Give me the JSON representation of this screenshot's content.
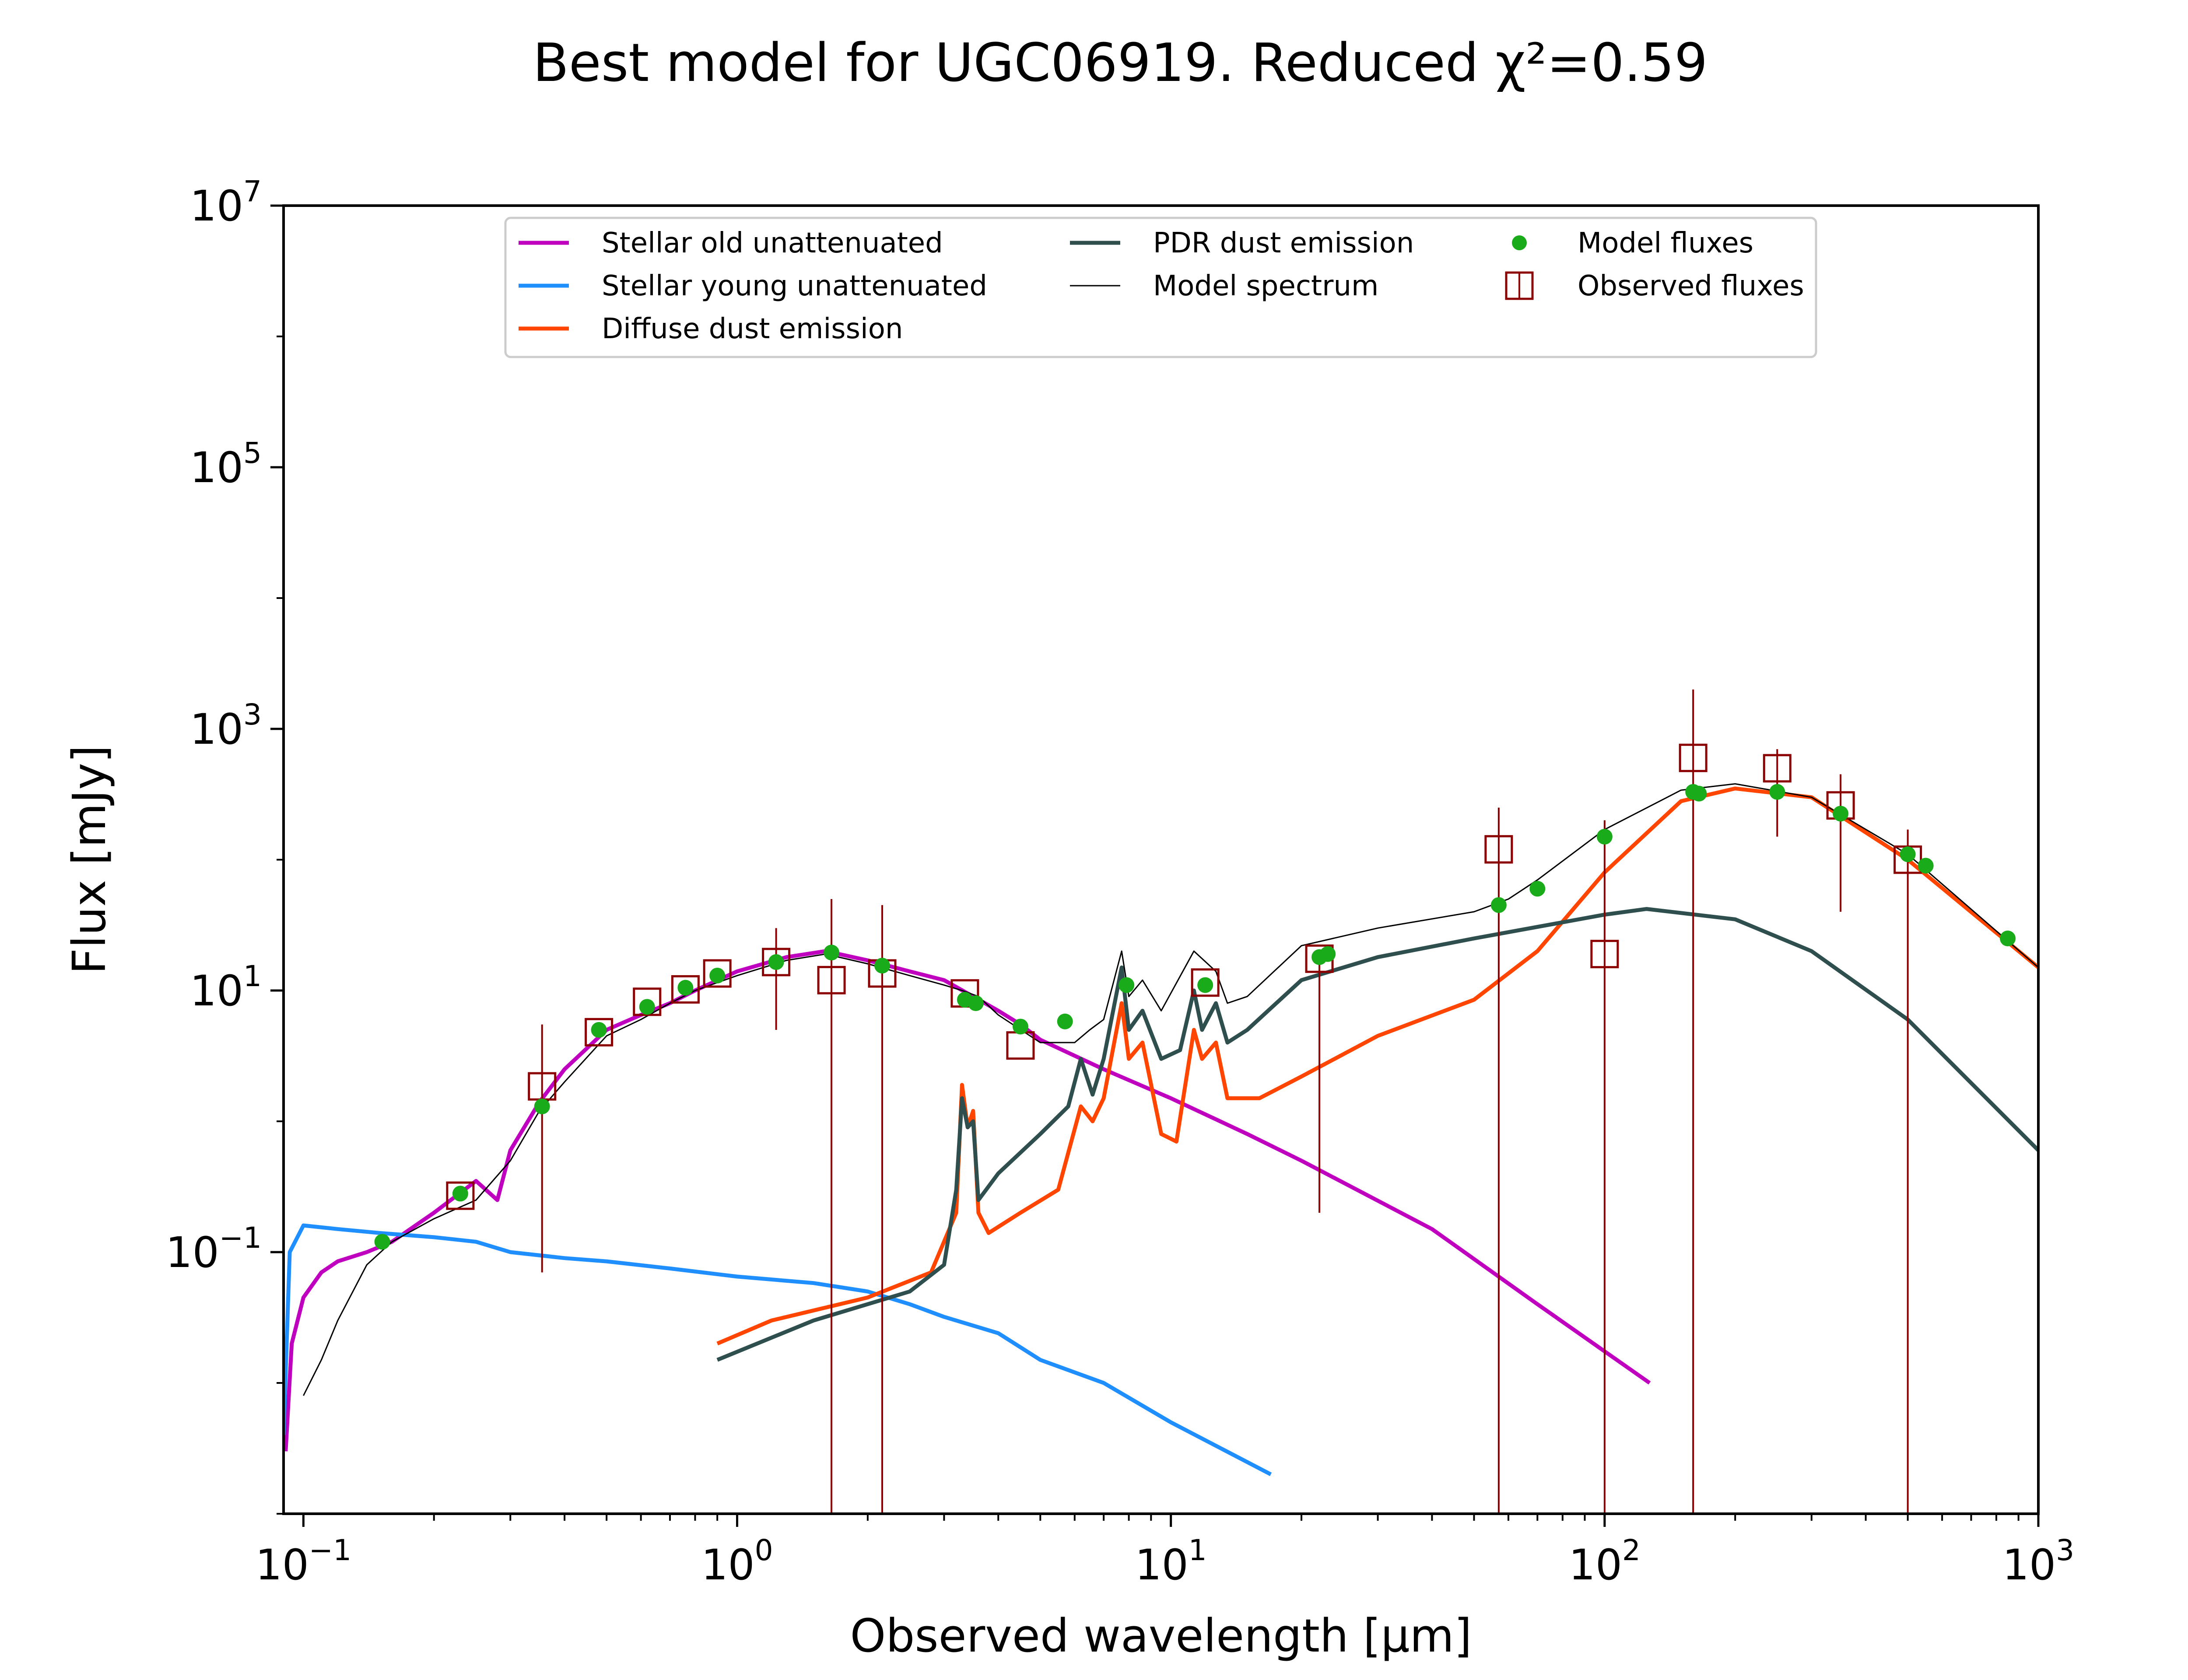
{
  "chart_data": {
    "type": "line",
    "title": "Best model for UGC06919. Reduced χ²=0.59",
    "xlabel": "Observed wavelength [μm]",
    "ylabel": "Flux [mJy]",
    "xscale": "log",
    "yscale": "log",
    "xlim": [
      0.09,
      1000
    ],
    "ylim": [
      0.001,
      10000000
    ],
    "x_ticks": [
      {
        "value": 0.1,
        "base": "10",
        "exp": "−1"
      },
      {
        "value": 1,
        "base": "10",
        "exp": "0"
      },
      {
        "value": 10,
        "base": "10",
        "exp": "1"
      },
      {
        "value": 100,
        "base": "10",
        "exp": "2"
      },
      {
        "value": 1000,
        "base": "10",
        "exp": "3"
      }
    ],
    "y_ticks": [
      {
        "value": 0.1,
        "base": "10",
        "exp": "−1"
      },
      {
        "value": 10,
        "base": "10",
        "exp": "1"
      },
      {
        "value": 1000,
        "base": "10",
        "exp": "3"
      },
      {
        "value": 100000,
        "base": "10",
        "exp": "5"
      },
      {
        "value": 10000000,
        "base": "10",
        "exp": "7"
      }
    ],
    "grid": false,
    "legend_position": "top-center",
    "series": [
      {
        "name": "Stellar old unattenuated",
        "kind": "line",
        "color": "#bf00bf",
        "points": [
          [
            0.091,
            0.003
          ],
          [
            0.094,
            0.02
          ],
          [
            0.1,
            0.045
          ],
          [
            0.11,
            0.07
          ],
          [
            0.12,
            0.085
          ],
          [
            0.14,
            0.1
          ],
          [
            0.16,
            0.12
          ],
          [
            0.2,
            0.2
          ],
          [
            0.25,
            0.35
          ],
          [
            0.28,
            0.25
          ],
          [
            0.3,
            0.6
          ],
          [
            0.35,
            1.4
          ],
          [
            0.4,
            2.5
          ],
          [
            0.5,
            5
          ],
          [
            0.6,
            6.5
          ],
          [
            0.7,
            8
          ],
          [
            0.8,
            10
          ],
          [
            1.0,
            14
          ],
          [
            1.3,
            18
          ],
          [
            1.6,
            20
          ],
          [
            2.0,
            17
          ],
          [
            2.5,
            14
          ],
          [
            3.0,
            12
          ],
          [
            3.5,
            9
          ],
          [
            4.0,
            7
          ],
          [
            4.5,
            5.5
          ],
          [
            5.0,
            4.2
          ],
          [
            7.0,
            2.5
          ],
          [
            10.0,
            1.5
          ],
          [
            15.0,
            0.8
          ],
          [
            20.0,
            0.5
          ],
          [
            40.0,
            0.15
          ],
          [
            70.0,
            0.04
          ],
          [
            127.0,
            0.01
          ]
        ]
      },
      {
        "name": "Stellar young unattenuated",
        "kind": "line",
        "color": "#1f8fff",
        "points": [
          [
            0.09,
            0.004
          ],
          [
            0.093,
            0.1
          ],
          [
            0.1,
            0.16
          ],
          [
            0.12,
            0.15
          ],
          [
            0.15,
            0.14
          ],
          [
            0.2,
            0.13
          ],
          [
            0.25,
            0.12
          ],
          [
            0.3,
            0.1
          ],
          [
            0.4,
            0.09
          ],
          [
            0.5,
            0.085
          ],
          [
            0.7,
            0.075
          ],
          [
            1.0,
            0.065
          ],
          [
            1.5,
            0.058
          ],
          [
            2.0,
            0.05
          ],
          [
            2.5,
            0.04
          ],
          [
            3.0,
            0.032
          ],
          [
            4.0,
            0.024
          ],
          [
            5.0,
            0.015
          ],
          [
            7.0,
            0.01
          ],
          [
            10.0,
            0.005
          ],
          [
            17.0,
            0.002
          ]
        ]
      },
      {
        "name": "Diffuse dust emission",
        "kind": "line",
        "color": "#ff4500",
        "points": [
          [
            0.9,
            0.02
          ],
          [
            1.2,
            0.03
          ],
          [
            2.0,
            0.045
          ],
          [
            2.8,
            0.07
          ],
          [
            3.2,
            0.2
          ],
          [
            3.3,
            1.9
          ],
          [
            3.4,
            0.9
          ],
          [
            3.5,
            1.2
          ],
          [
            3.6,
            0.2
          ],
          [
            3.8,
            0.14
          ],
          [
            4.5,
            0.2
          ],
          [
            5.5,
            0.3
          ],
          [
            6.2,
            1.3
          ],
          [
            6.6,
            1.0
          ],
          [
            7.0,
            1.5
          ],
          [
            7.7,
            8
          ],
          [
            8.0,
            3
          ],
          [
            8.6,
            4
          ],
          [
            9.5,
            0.8
          ],
          [
            10.3,
            0.7
          ],
          [
            11.3,
            5
          ],
          [
            11.8,
            3
          ],
          [
            12.7,
            4
          ],
          [
            13.5,
            1.5
          ],
          [
            16.0,
            1.5
          ],
          [
            20.0,
            2.2
          ],
          [
            30.0,
            4.5
          ],
          [
            50.0,
            8.5
          ],
          [
            70.0,
            20
          ],
          [
            100.0,
            80
          ],
          [
            150.0,
            280
          ],
          [
            200.0,
            350
          ],
          [
            300.0,
            300
          ],
          [
            500.0,
            100
          ],
          [
            1000.0,
            15
          ]
        ]
      },
      {
        "name": "PDR dust emission",
        "kind": "line",
        "color": "#2f4f4f",
        "points": [
          [
            0.9,
            0.015
          ],
          [
            1.5,
            0.03
          ],
          [
            2.5,
            0.05
          ],
          [
            3.0,
            0.08
          ],
          [
            3.2,
            0.3
          ],
          [
            3.3,
            1.5
          ],
          [
            3.4,
            0.9
          ],
          [
            3.5,
            1.0
          ],
          [
            3.6,
            0.25
          ],
          [
            4.0,
            0.4
          ],
          [
            5.0,
            0.8
          ],
          [
            5.8,
            1.3
          ],
          [
            6.2,
            3.0
          ],
          [
            6.6,
            1.6
          ],
          [
            7.0,
            3
          ],
          [
            7.7,
            15
          ],
          [
            8.0,
            5
          ],
          [
            8.6,
            7
          ],
          [
            9.5,
            3
          ],
          [
            10.5,
            3.5
          ],
          [
            11.3,
            10
          ],
          [
            11.8,
            5
          ],
          [
            12.7,
            8
          ],
          [
            13.5,
            4
          ],
          [
            15.0,
            5
          ],
          [
            20.0,
            12
          ],
          [
            30.0,
            18
          ],
          [
            50.0,
            25
          ],
          [
            100.0,
            38
          ],
          [
            125.0,
            42
          ],
          [
            200.0,
            35
          ],
          [
            300.0,
            20
          ],
          [
            500.0,
            6
          ],
          [
            1000.0,
            0.6
          ]
        ]
      },
      {
        "name": "Model spectrum",
        "kind": "line",
        "color": "#000000",
        "points": [
          [
            0.1,
            0.008
          ],
          [
            0.11,
            0.015
          ],
          [
            0.12,
            0.03
          ],
          [
            0.14,
            0.08
          ],
          [
            0.16,
            0.12
          ],
          [
            0.2,
            0.18
          ],
          [
            0.25,
            0.25
          ],
          [
            0.3,
            0.5
          ],
          [
            0.35,
            1.2
          ],
          [
            0.4,
            2.0
          ],
          [
            0.5,
            4.5
          ],
          [
            0.6,
            6
          ],
          [
            0.7,
            8
          ],
          [
            0.8,
            10
          ],
          [
            1.0,
            13
          ],
          [
            1.3,
            17
          ],
          [
            1.6,
            19
          ],
          [
            2.0,
            16
          ],
          [
            2.5,
            13
          ],
          [
            3.0,
            11
          ],
          [
            3.3,
            10
          ],
          [
            3.6,
            9
          ],
          [
            4.0,
            6.5
          ],
          [
            5.0,
            4
          ],
          [
            6.0,
            4
          ],
          [
            6.5,
            5
          ],
          [
            7.0,
            6
          ],
          [
            7.7,
            20
          ],
          [
            8.0,
            9
          ],
          [
            8.6,
            12
          ],
          [
            9.5,
            7
          ],
          [
            11.3,
            20
          ],
          [
            12.7,
            14
          ],
          [
            13.5,
            8
          ],
          [
            15.0,
            9
          ],
          [
            20.0,
            22
          ],
          [
            30.0,
            30
          ],
          [
            50.0,
            40
          ],
          [
            60.0,
            50
          ],
          [
            70.0,
            70
          ],
          [
            100.0,
            170
          ],
          [
            150.0,
            340
          ],
          [
            200.0,
            380
          ],
          [
            300.0,
            300
          ],
          [
            500.0,
            110
          ],
          [
            1000.0,
            15
          ]
        ]
      },
      {
        "name": "Model fluxes",
        "kind": "points",
        "color": "#1aab1a",
        "points": [
          [
            0.152,
            0.12
          ],
          [
            0.23,
            0.28
          ],
          [
            0.355,
            1.3
          ],
          [
            0.48,
            5
          ],
          [
            0.62,
            7.5
          ],
          [
            0.76,
            10.5
          ],
          [
            0.9,
            13
          ],
          [
            1.23,
            16.5
          ],
          [
            1.65,
            19.5
          ],
          [
            2.16,
            15.5
          ],
          [
            3.35,
            8.5
          ],
          [
            3.55,
            8
          ],
          [
            4.5,
            5.3
          ],
          [
            5.7,
            5.8
          ],
          [
            7.9,
            11
          ],
          [
            12.0,
            11
          ],
          [
            22.0,
            18
          ],
          [
            23.0,
            19
          ],
          [
            57.0,
            45
          ],
          [
            70.0,
            60
          ],
          [
            100.0,
            150
          ],
          [
            160.0,
            330
          ],
          [
            165.0,
            320
          ],
          [
            250.0,
            330
          ],
          [
            350.0,
            225
          ],
          [
            500.0,
            110
          ],
          [
            550.0,
            90
          ],
          [
            850.0,
            25
          ]
        ]
      },
      {
        "name": "Observed fluxes",
        "kind": "errorbar",
        "color": "#8b0000",
        "points": [
          [
            0.23,
            0.27,
            0.27,
            0.27
          ],
          [
            0.355,
            1.85,
            0.07,
            5.5
          ],
          [
            0.48,
            4.8,
            4.8,
            4.8
          ],
          [
            0.62,
            8.2,
            8.2,
            8.2
          ],
          [
            0.76,
            10.2,
            10.2,
            10.2
          ],
          [
            0.9,
            13.5,
            13.5,
            13.5
          ],
          [
            1.23,
            16.5,
            5.0,
            30
          ],
          [
            1.65,
            12.0,
            0.0001,
            50
          ],
          [
            2.16,
            13.5,
            0.0001,
            45
          ],
          [
            3.35,
            9.5,
            9.5,
            9.5
          ],
          [
            4.5,
            3.8,
            3.8,
            3.8
          ],
          [
            12.0,
            11.5,
            11.5,
            11.5
          ],
          [
            22.0,
            17.5,
            0.2,
            17.5
          ],
          [
            57.0,
            120,
            0.0001,
            250
          ],
          [
            100.0,
            19,
            0.0001,
            200
          ],
          [
            160.0,
            600,
            0.0001,
            2000
          ],
          [
            250.0,
            500,
            150,
            700
          ],
          [
            350.0,
            260,
            40,
            450
          ],
          [
            500.0,
            100,
            0.0001,
            170
          ]
        ]
      }
    ]
  },
  "legend": {
    "items": [
      {
        "label": "Stellar old unattenuated",
        "marker": "line",
        "color": "#bf00bf"
      },
      {
        "label": "Stellar young unattenuated",
        "marker": "line",
        "color": "#1f8fff"
      },
      {
        "label": "Diffuse dust emission",
        "marker": "line",
        "color": "#ff4500"
      },
      {
        "label": "PDR dust emission",
        "marker": "line",
        "color": "#2f4f4f"
      },
      {
        "label": "Model spectrum",
        "marker": "thin-line",
        "color": "#000000"
      },
      {
        "label": "Model fluxes",
        "marker": "dot",
        "color": "#1aab1a"
      },
      {
        "label": "Observed fluxes",
        "marker": "square",
        "color": "#8b0000"
      }
    ]
  }
}
